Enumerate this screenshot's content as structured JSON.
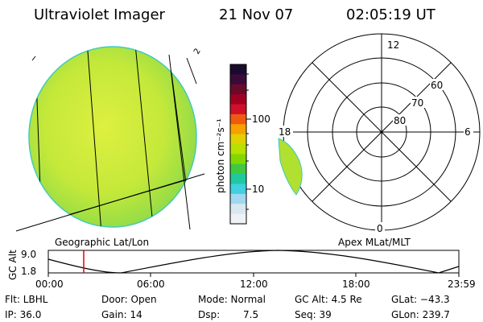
{
  "header": {
    "instrument": "Ultraviolet Imager",
    "date": "21 Nov 07",
    "time": "02:05:19 UT"
  },
  "left_panel": {
    "label": "Geographic Lat/Lon",
    "corner_mark": "2"
  },
  "colorbar": {
    "unit_label": "photon cm⁻²s⁻¹",
    "tick_100": "100",
    "tick_10": "10",
    "colors": [
      "#1a0b2e",
      "#3a0b3a",
      "#6a0a2a",
      "#a00020",
      "#d0102a",
      "#f05a10",
      "#f7a000",
      "#e0d000",
      "#b8e000",
      "#80d800",
      "#40c840",
      "#20c8a0",
      "#40d0e0",
      "#a0d8f0",
      "#d8e8f0",
      "#eef2f4"
    ]
  },
  "polar": {
    "label": "Apex MLat/MLT",
    "mlt_12": "12",
    "mlt_18": "18",
    "mlt_6": "6",
    "mlt_0": "0",
    "lat_60": "60",
    "lat_70": "70",
    "lat_80": "80"
  },
  "orbit": {
    "axis_label": "GC Alt",
    "y_top": "9.0",
    "y_bottom": "1.8",
    "ticks": [
      "00:00",
      "06:00",
      "12:00",
      "18:00",
      "23:59"
    ],
    "marker_color": "#e00000"
  },
  "info": {
    "flt": "Flt: LBHL",
    "door": "Door: Open",
    "mode": "Mode: Normal",
    "gc_alt": "GC Alt: 4.5 Re",
    "glat": "GLat: −43.3",
    "ip": "IP: 36.0",
    "gain": "Gain: 14",
    "dsp_label": "Dsp:",
    "dsp_value": "7.5",
    "seq": "Seq: 39",
    "glon": "GLon: 239.7"
  }
}
